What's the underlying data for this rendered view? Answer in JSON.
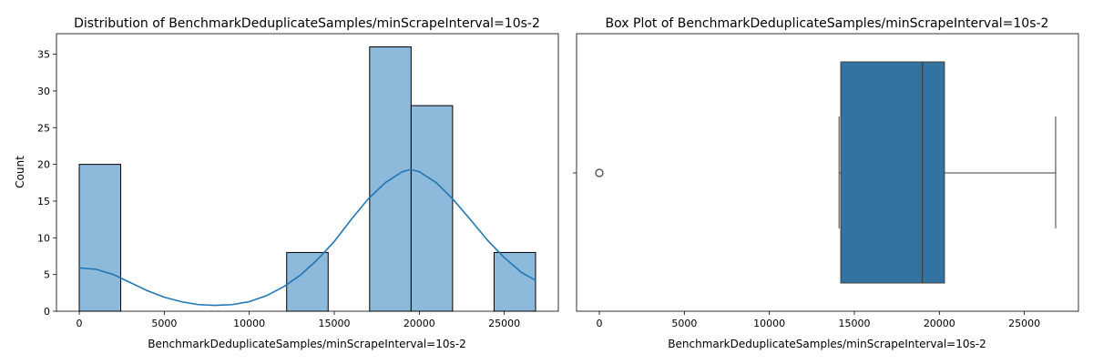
{
  "chart_data": [
    {
      "type": "bar",
      "subtype": "histogram_with_kde",
      "title": "Distribution of BenchmarkDeduplicateSamples/minScrapeInterval=10s-2",
      "xlabel": "BenchmarkDeduplicateSamples/minScrapeInterval=10s-2",
      "ylabel": "Count",
      "xlim": [
        -1340,
        28180
      ],
      "ylim": [
        0,
        37.8
      ],
      "xticks": [
        0,
        5000,
        10000,
        15000,
        20000,
        25000
      ],
      "yticks": [
        0,
        5,
        10,
        15,
        20,
        25,
        30,
        35
      ],
      "bins": [
        {
          "start": 0,
          "end": 2440,
          "count": 20
        },
        {
          "start": 2440,
          "end": 4880,
          "count": 0
        },
        {
          "start": 4880,
          "end": 7320,
          "count": 0
        },
        {
          "start": 7320,
          "end": 9760,
          "count": 0
        },
        {
          "start": 9760,
          "end": 12200,
          "count": 0
        },
        {
          "start": 12200,
          "end": 14640,
          "count": 8
        },
        {
          "start": 14640,
          "end": 17080,
          "count": 0
        },
        {
          "start": 17080,
          "end": 19520,
          "count": 36
        },
        {
          "start": 19520,
          "end": 21960,
          "count": 28
        },
        {
          "start": 21960,
          "end": 24400,
          "count": 0
        },
        {
          "start": 24400,
          "end": 26840,
          "count": 8
        }
      ],
      "kde": {
        "x": [
          0,
          1000,
          2000,
          3000,
          4000,
          5000,
          6000,
          7000,
          8000,
          9000,
          10000,
          11000,
          12000,
          13000,
          14000,
          15000,
          16000,
          17000,
          18000,
          19000,
          19500,
          20000,
          21000,
          22000,
          23000,
          24000,
          25000,
          26000,
          26840
        ],
        "y": [
          5.9,
          5.7,
          5.0,
          3.9,
          2.8,
          1.9,
          1.3,
          0.9,
          0.8,
          0.9,
          1.3,
          2.1,
          3.3,
          4.9,
          7.0,
          9.5,
          12.5,
          15.3,
          17.5,
          19.0,
          19.3,
          19.0,
          17.5,
          15.2,
          12.5,
          9.7,
          7.3,
          5.3,
          4.2
        ]
      },
      "bar_color": "#8db9da",
      "line_color": "#1f77b4"
    },
    {
      "type": "box",
      "title": "Box Plot of BenchmarkDeduplicateSamples/minScrapeInterval=10s-2",
      "xlabel": "BenchmarkDeduplicateSamples/minScrapeInterval=10s-2",
      "xlim": [
        -1340,
        28180
      ],
      "xticks": [
        0,
        5000,
        10000,
        15000,
        20000,
        25000
      ],
      "stats": {
        "whisker_low": 14100,
        "q1": 14200,
        "median": 19000,
        "q3": 20300,
        "whisker_high": 26840
      },
      "outliers": [
        0
      ],
      "box_color": "#3274a1",
      "line_color": "#3f3f3f"
    }
  ]
}
